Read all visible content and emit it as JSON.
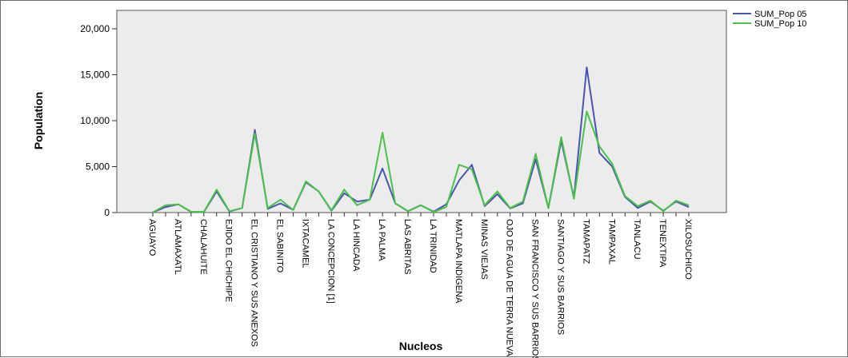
{
  "chart_data": {
    "type": "line",
    "xlabel": "Nucleos",
    "ylabel": "Population",
    "ylim": [
      0,
      22000
    ],
    "yticks": [
      0,
      5000,
      10000,
      15000,
      20000
    ],
    "ytick_labels": [
      "0",
      "5,000",
      "10,000",
      "15,000",
      "20,000"
    ],
    "grid": false,
    "legend_position": "top-right",
    "categories": [
      "AGUAYO",
      "",
      "ATLAMAXATL",
      "",
      "CHALAHUITE",
      "",
      "EJIDO EL CHICHIPE",
      "",
      "EL CRISTIANO Y SUS ANEXOS",
      "",
      "EL SABINITO",
      "",
      "IXTACAMEL",
      "",
      "LA CONCEPCION [1]",
      "",
      "LA HINCADA",
      "",
      "LA PALMA",
      "",
      "LAS ABRITAS",
      "",
      "LA TRINIDAD",
      "",
      "MATLAPA INDIGENA",
      "",
      "MINAS VIEJAS",
      "",
      "OJO DE AGUA DE TERRA NUEVA",
      "",
      "SAN FRANCISCO Y SUS BARRIOS",
      "",
      "SANTIAGO Y SUS BARRIOS",
      "",
      "TAMAPATZ",
      "",
      "TAMPAXAL",
      "",
      "TANLACU",
      "",
      "TENEXTIPA",
      "",
      "XILOSUCHICO"
    ],
    "series": [
      {
        "name": "SUM_Pop 05",
        "color": "#4a55b0",
        "values": [
          30,
          600,
          900,
          80,
          60,
          2300,
          120,
          500,
          9000,
          400,
          1000,
          300,
          3300,
          2300,
          200,
          2100,
          1200,
          1400,
          4800,
          1000,
          150,
          800,
          100,
          900,
          3500,
          5200,
          700,
          2000,
          450,
          1000,
          5800,
          500,
          7800,
          1600,
          15800,
          6500,
          5000,
          1700,
          500,
          1200,
          200,
          1200,
          600
        ]
      },
      {
        "name": "SUM_Pop 10",
        "color": "#4cbf4c",
        "values": [
          30,
          800,
          900,
          100,
          60,
          2500,
          150,
          500,
          8600,
          500,
          1400,
          300,
          3400,
          2300,
          250,
          2500,
          800,
          1400,
          8700,
          1000,
          150,
          800,
          50,
          600,
          5200,
          4700,
          800,
          2300,
          500,
          1200,
          6400,
          500,
          8200,
          1500,
          11000,
          7200,
          5300,
          1800,
          700,
          1300,
          150,
          1300,
          800
        ]
      }
    ]
  }
}
